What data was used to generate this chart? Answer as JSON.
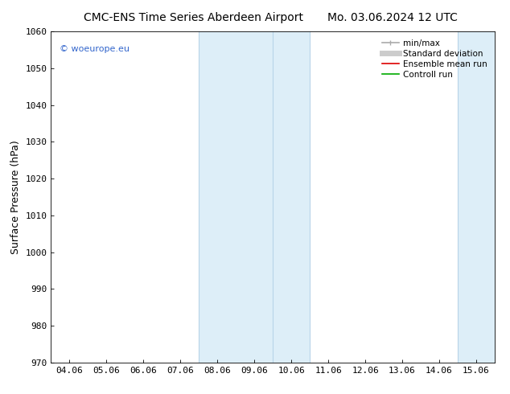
{
  "title_left": "CMC-ENS Time Series Aberdeen Airport",
  "title_right": "Mo. 03.06.2024 12 UTC",
  "ylabel": "Surface Pressure (hPa)",
  "ylim": [
    970,
    1060
  ],
  "yticks": [
    970,
    980,
    990,
    1000,
    1010,
    1020,
    1030,
    1040,
    1050,
    1060
  ],
  "xtick_labels": [
    "04.06",
    "05.06",
    "06.06",
    "07.06",
    "08.06",
    "09.06",
    "10.06",
    "11.06",
    "12.06",
    "13.06",
    "14.06",
    "15.06"
  ],
  "background_color": "#ffffff",
  "plot_bg_color": "#ffffff",
  "shaded_regions": [
    {
      "x0_label": "08.06",
      "x1_label": "10.06",
      "inner_label": "09.06"
    },
    {
      "x0_label": "15.06",
      "x1_label": "15.06",
      "inner_label": "15.06"
    }
  ],
  "shade_color": "#ddeef8",
  "shade_line_color": "#b8d4e8",
  "watermark_text": "© woeurope.eu",
  "watermark_color": "#3366cc",
  "legend_entries": [
    {
      "label": "min/max",
      "color": "#aaaaaa",
      "lw": 1.2,
      "style": "solid"
    },
    {
      "label": "Standard deviation",
      "color": "#cccccc",
      "lw": 5,
      "style": "solid"
    },
    {
      "label": "Ensemble mean run",
      "color": "#dd0000",
      "lw": 1.2,
      "style": "solid"
    },
    {
      "label": "Controll run",
      "color": "#00aa00",
      "lw": 1.2,
      "style": "solid"
    }
  ],
  "title_fontsize": 10,
  "ylabel_fontsize": 9,
  "tick_fontsize": 8,
  "legend_fontsize": 7.5
}
